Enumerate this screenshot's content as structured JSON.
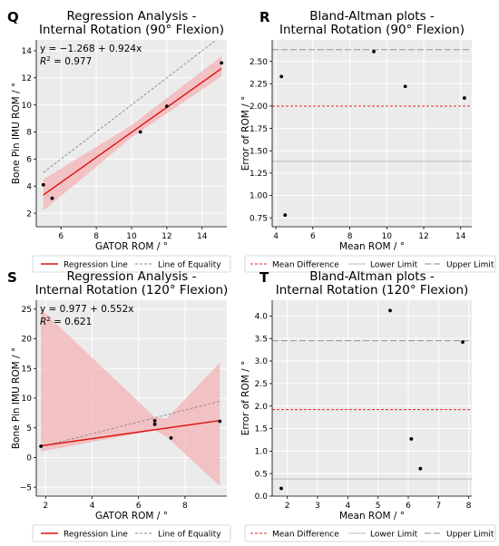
{
  "chart_data": [
    {
      "panel": "Q",
      "type": "scatter",
      "title_lines": [
        "Regression Analysis -",
        "Internal Rotation (90° Flexion)"
      ],
      "xlabel": "GATOR ROM / °",
      "ylabel": "Bone Pin IMU ROM / °",
      "xlim": [
        4.6,
        15.4
      ],
      "ylim": [
        1.0,
        14.8
      ],
      "xticks": [
        6,
        8,
        10,
        12,
        14
      ],
      "yticks": [
        2,
        4,
        6,
        8,
        10,
        12,
        14
      ],
      "points": {
        "x": [
          5.0,
          5.5,
          10.5,
          12.0,
          15.1
        ],
        "y": [
          4.1,
          3.1,
          8.0,
          9.9,
          13.1
        ]
      },
      "regression": {
        "intercept": -1.268,
        "slope": 0.924,
        "x_range": [
          5.0,
          15.1
        ]
      },
      "confidence_band": {
        "x": [
          5.0,
          10.0,
          15.1
        ],
        "upper": [
          4.5,
          8.5,
          13.6
        ],
        "lower": [
          2.2,
          7.6,
          12.1
        ]
      },
      "equality_line": {
        "x": [
          5.0,
          15.1
        ]
      },
      "equation_text": "y = −1.268 + 0.924x",
      "r2_label": "R",
      "r2_sup": "2",
      "r2_value": " = 0.977",
      "legend": {
        "regression": "Regression Line",
        "equality": "Line of Equality"
      },
      "grid": true,
      "colors": {
        "regression": "#dd1111",
        "band": "#f4b3b5",
        "equality": "#888888",
        "point": "#000000"
      }
    },
    {
      "panel": "R",
      "type": "scatter",
      "title_lines": [
        "Bland-Altman plots -",
        "Internal Rotation (90° Flexion)"
      ],
      "xlabel": "Mean ROM / °",
      "ylabel": "Error of ROM / °",
      "xlim": [
        3.8,
        14.6
      ],
      "ylim": [
        0.65,
        2.74
      ],
      "xticks": [
        4,
        6,
        8,
        10,
        12,
        14
      ],
      "yticks": [
        0.75,
        1.0,
        1.25,
        1.5,
        1.75,
        2.0,
        2.25,
        2.5
      ],
      "ytick_labels": [
        "0.75",
        "1.00",
        "1.25",
        "1.50",
        "1.75",
        "2.00",
        "2.25",
        "2.50"
      ],
      "points": {
        "x": [
          4.3,
          4.5,
          9.3,
          11.0,
          14.2
        ],
        "y": [
          2.33,
          0.78,
          2.61,
          2.22,
          2.09
        ]
      },
      "mean_difference": 2.0,
      "lower_limit": 1.38,
      "upper_limit": 2.63,
      "legend": {
        "mean": "Mean Difference",
        "lower": "Lower Limit",
        "upper": "Upper Limit"
      },
      "grid": true,
      "colors": {
        "mean": "#ee2222",
        "lower": "#bbbbbb",
        "upper": "#888888",
        "point": "#000000"
      }
    },
    {
      "panel": "S",
      "type": "scatter",
      "title_lines": [
        "Regression Analysis -",
        "Internal Rotation (120° Flexion)"
      ],
      "xlabel": "GATOR ROM / °",
      "ylabel": "Bone Pin IMU ROM / °",
      "xlim": [
        1.6,
        9.8
      ],
      "ylim": [
        -6.5,
        26.5
      ],
      "xticks": [
        2,
        4,
        6,
        8
      ],
      "yticks": [
        -5,
        0,
        5,
        10,
        15,
        20,
        25
      ],
      "points": {
        "x": [
          1.8,
          6.7,
          6.7,
          7.4,
          9.5
        ],
        "y": [
          1.9,
          5.6,
          6.2,
          3.3,
          6.1
        ]
      },
      "regression": {
        "intercept": 0.977,
        "slope": 0.552,
        "x_range": [
          1.8,
          9.5
        ]
      },
      "confidence_band": {
        "x": [
          1.8,
          6.7,
          7.2,
          9.5
        ],
        "upper": [
          25.0,
          6.8,
          6.5,
          16.0
        ],
        "lower": [
          1.0,
          4.6,
          3.5,
          -4.8
        ]
      },
      "equality_line": {
        "x": [
          1.8,
          9.5
        ]
      },
      "equation_text": "y = 0.977 + 0.552x",
      "r2_label": "R",
      "r2_sup": "2",
      "r2_value": " = 0.621",
      "legend": {
        "regression": "Regression Line",
        "equality": "Line of Equality"
      },
      "grid": true,
      "colors": {
        "regression": "#dd1111",
        "band": "#f4b3b5",
        "equality": "#888888",
        "point": "#000000"
      }
    },
    {
      "panel": "T",
      "type": "scatter",
      "title_lines": [
        "Bland-Altman plots -",
        "Internal Rotation (120° Flexion)"
      ],
      "xlabel": "Mean ROM / °",
      "ylabel": "Error of ROM / °",
      "xlim": [
        1.5,
        8.1
      ],
      "ylim": [
        0.0,
        4.35
      ],
      "xticks": [
        2,
        3,
        4,
        5,
        6,
        7,
        8
      ],
      "yticks": [
        0.0,
        0.5,
        1.0,
        1.5,
        2.0,
        2.5,
        3.0,
        3.5,
        4.0
      ],
      "ytick_labels": [
        "0.0",
        "0.5",
        "1.0",
        "1.5",
        "2.0",
        "2.5",
        "3.0",
        "3.5",
        "4.0"
      ],
      "points": {
        "x": [
          1.8,
          5.4,
          6.1,
          6.4,
          7.8
        ],
        "y": [
          0.17,
          4.12,
          1.27,
          0.61,
          3.42
        ]
      },
      "mean_difference": 1.92,
      "lower_limit": 0.38,
      "upper_limit": 3.45,
      "legend": {
        "mean": "Mean Difference",
        "lower": "Lower Limit",
        "upper": "Upper Limit"
      },
      "grid": true,
      "colors": {
        "mean": "#ee2222",
        "lower": "#bbbbbb",
        "upper": "#888888",
        "point": "#000000"
      }
    }
  ]
}
